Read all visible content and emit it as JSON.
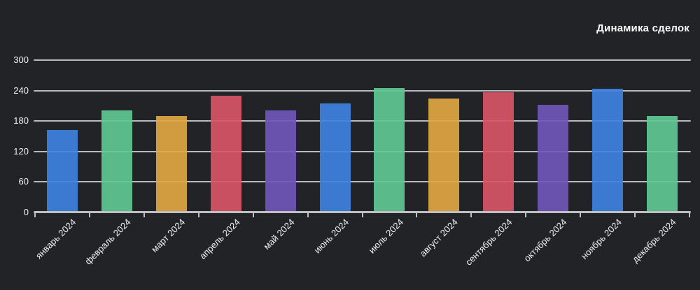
{
  "chart_data": {
    "type": "bar",
    "title": "Динамика сделок",
    "categories": [
      "январь 2024",
      "февраль 2024",
      "март 2024",
      "апрель 2024",
      "май 2024",
      "июнь 2024",
      "июль 2024",
      "август 2024",
      "сентябрь 2024",
      "октябрь 2024",
      "ноябрь 2024",
      "декабрь 2024"
    ],
    "values": [
      162,
      201,
      189,
      229,
      201,
      214,
      245,
      224,
      236,
      212,
      243,
      189
    ],
    "bar_colors": [
      "#3f82e0",
      "#5fc892",
      "#dfa741",
      "#d75565",
      "#7057b8",
      "#3f82e0",
      "#5fc892",
      "#dfa741",
      "#d75565",
      "#7057b8",
      "#3f82e0",
      "#5fc892"
    ],
    "palette_cycle": [
      "#3f82e0",
      "#5fc892",
      "#dfa741",
      "#d75565",
      "#7057b8"
    ],
    "xlabel": "",
    "ylabel": "",
    "y_ticks": [
      0,
      60,
      120,
      180,
      240,
      300
    ],
    "ylim": [
      0,
      300
    ],
    "grid": "horizontal",
    "legend_position": "none",
    "x_tick_label_rotation_deg": 45,
    "colors": {
      "background": "#222327",
      "gridline": "#b9babd",
      "axis_line": "#bfc0c2",
      "tick_text": "#f2f2f2",
      "title_text": "#fafafa"
    }
  }
}
